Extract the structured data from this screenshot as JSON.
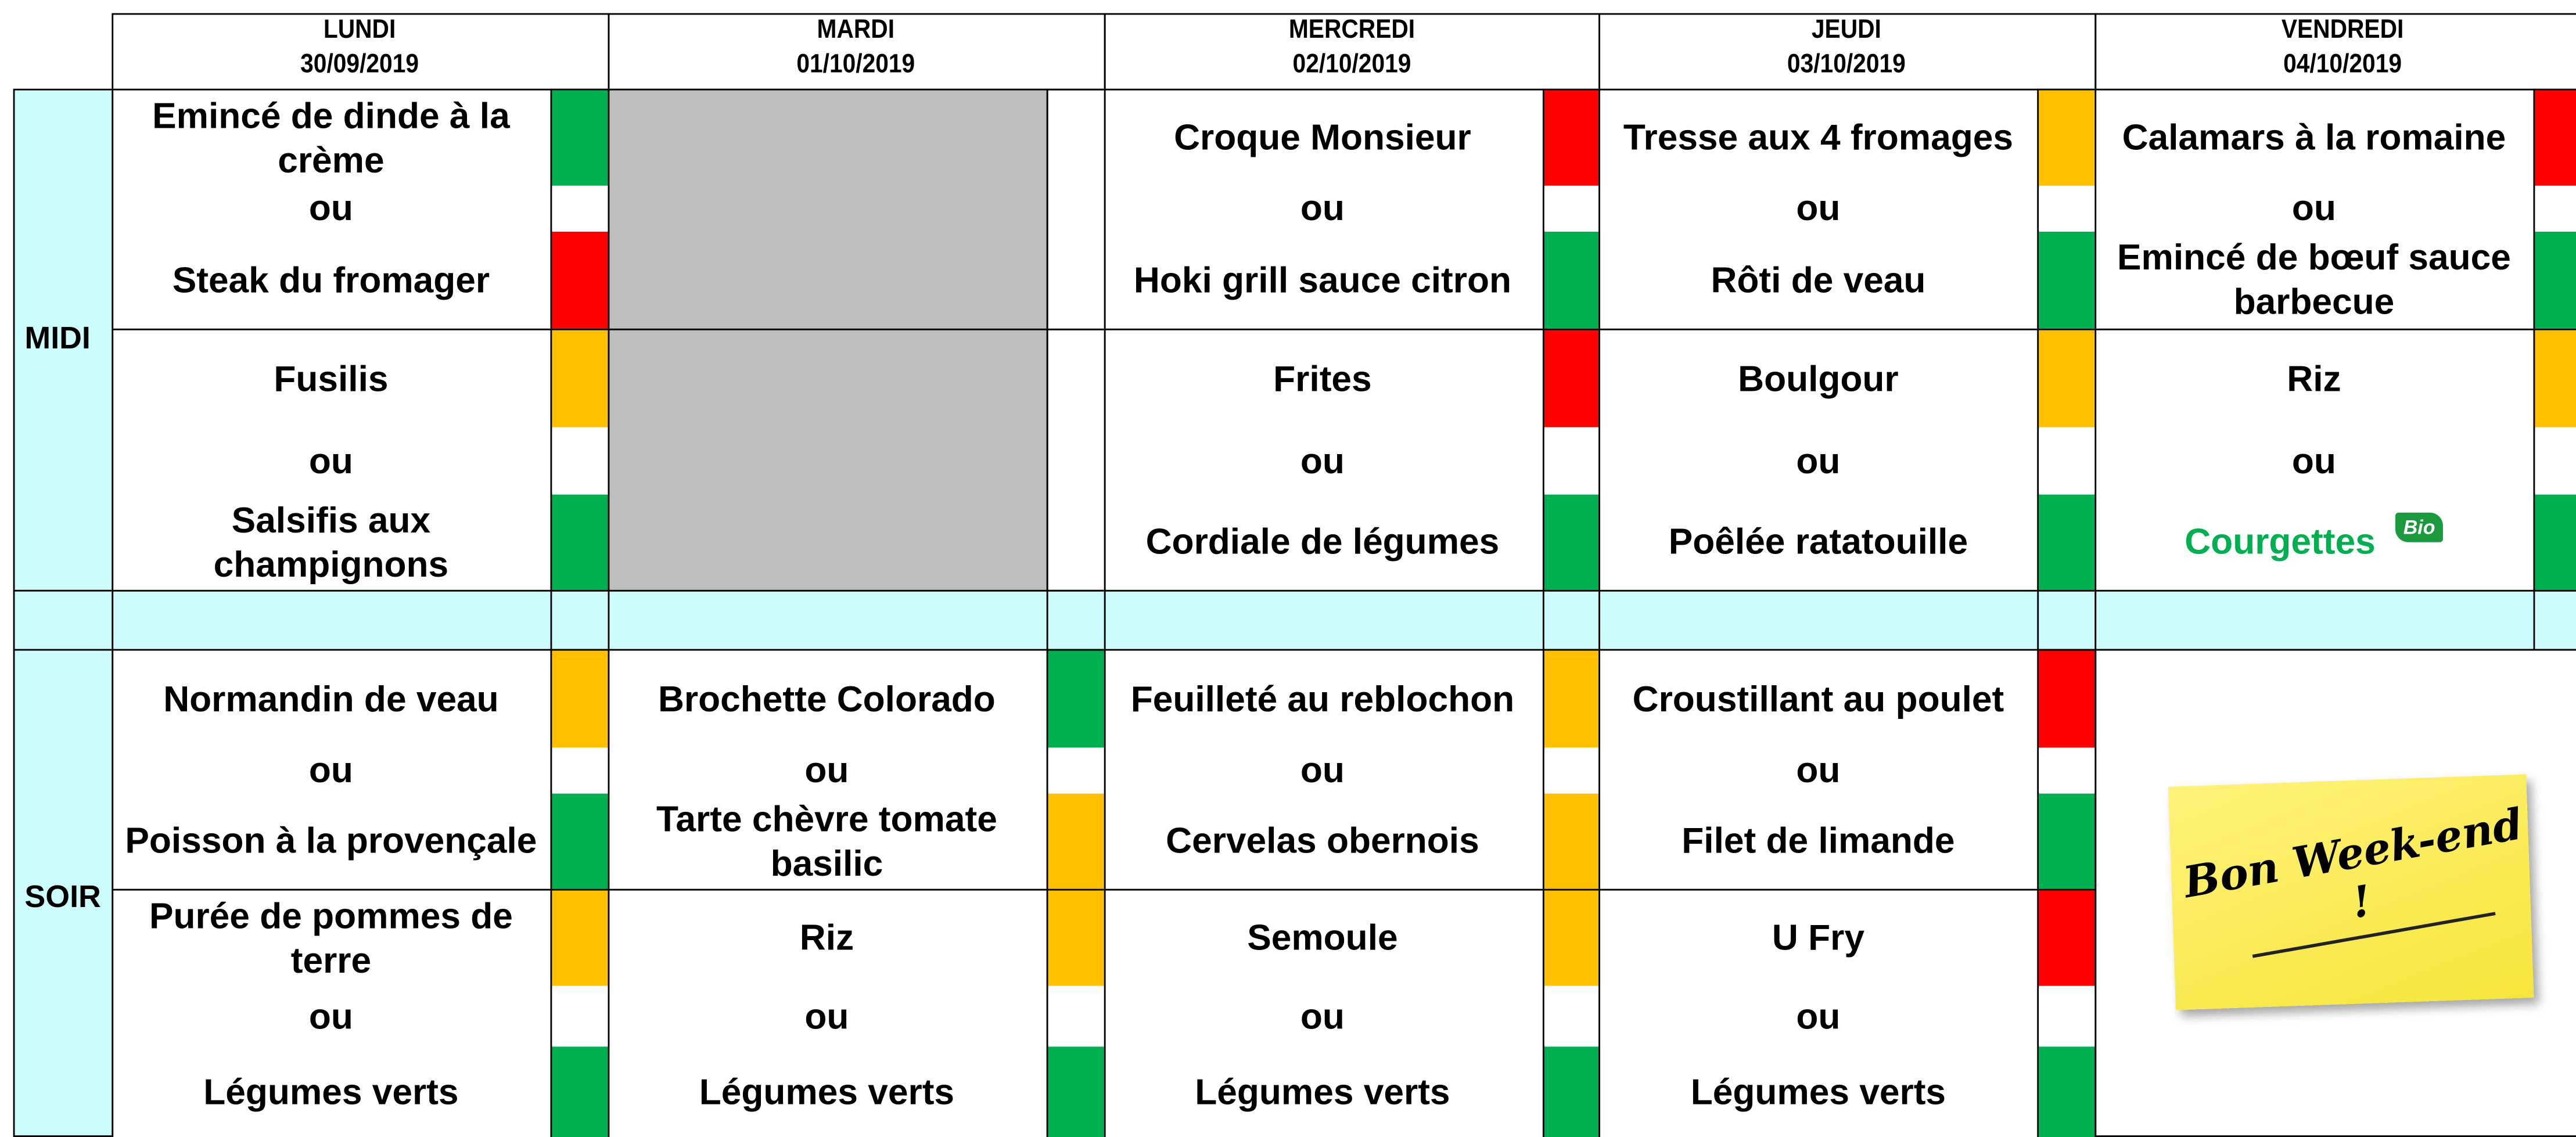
{
  "days": [
    {
      "name": "LUNDI",
      "date": "30/09/2019",
      "midi_main": [
        {
          "text": "Emincé de dinde à la crème",
          "color": "#00b050"
        },
        {
          "text": "ou",
          "color": "#ffffff"
        },
        {
          "text": "Steak du fromager",
          "color": "#ff0000"
        }
      ],
      "midi_side": [
        {
          "text": "Fusilis",
          "color": "#ffc000"
        },
        {
          "text": "ou",
          "color": "#ffffff"
        },
        {
          "text": "Salsifis aux champignons",
          "color": "#00b050"
        }
      ],
      "soir_main": [
        {
          "text": "Normandin de veau",
          "color": "#ffc000"
        },
        {
          "text": "ou",
          "color": "#ffffff"
        },
        {
          "text": "Poisson à la provençale",
          "color": "#00b050"
        }
      ],
      "soir_side": [
        {
          "text": "Purée de pommes de terre",
          "color": "#ffc000"
        },
        {
          "text": "ou",
          "color": "#ffffff"
        },
        {
          "text": "Légumes verts",
          "color": "#00b050"
        }
      ]
    },
    {
      "name": "MARDI",
      "date": "01/10/2019",
      "midi_main": [],
      "midi_side": [],
      "soir_main": [
        {
          "text": "Brochette Colorado",
          "color": "#00b050"
        },
        {
          "text": "ou",
          "color": "#ffffff"
        },
        {
          "text": "Tarte chèvre tomate basilic",
          "color": "#ffc000"
        }
      ],
      "soir_side": [
        {
          "text": "Riz",
          "color": "#ffc000"
        },
        {
          "text": "ou",
          "color": "#ffffff"
        },
        {
          "text": "Légumes verts",
          "color": "#00b050"
        }
      ]
    },
    {
      "name": "MERCREDI",
      "date": "02/10/2019",
      "midi_main": [
        {
          "text": "Croque Monsieur",
          "color": "#ff0000"
        },
        {
          "text": "ou",
          "color": "#ffffff"
        },
        {
          "text": "Hoki grill sauce citron",
          "color": "#00b050"
        }
      ],
      "midi_side": [
        {
          "text": "Frites",
          "color": "#ff0000"
        },
        {
          "text": "ou",
          "color": "#ffffff"
        },
        {
          "text": "Cordiale de légumes",
          "color": "#00b050"
        }
      ],
      "soir_main": [
        {
          "text": "Feuilleté au reblochon",
          "color": "#ffc000"
        },
        {
          "text": "ou",
          "color": "#ffffff"
        },
        {
          "text": "Cervelas obernois",
          "color": "#ffc000"
        }
      ],
      "soir_side": [
        {
          "text": "Semoule",
          "color": "#ffc000"
        },
        {
          "text": "ou",
          "color": "#ffffff"
        },
        {
          "text": "Légumes verts",
          "color": "#00b050"
        }
      ]
    },
    {
      "name": "JEUDI",
      "date": "03/10/2019",
      "midi_main": [
        {
          "text": "Tresse aux 4 fromages",
          "color": "#ffc000"
        },
        {
          "text": "ou",
          "color": "#ffffff"
        },
        {
          "text": "Rôti de veau",
          "color": "#00b050"
        }
      ],
      "midi_side": [
        {
          "text": "Boulgour",
          "color": "#ffc000"
        },
        {
          "text": "ou",
          "color": "#ffffff"
        },
        {
          "text": "Poêlée ratatouille",
          "color": "#00b050"
        }
      ],
      "soir_main": [
        {
          "text": "Croustillant au poulet",
          "color": "#ff0000"
        },
        {
          "text": "ou",
          "color": "#ffffff"
        },
        {
          "text": "Filet de limande",
          "color": "#00b050"
        }
      ],
      "soir_side": [
        {
          "text": "U Fry",
          "color": "#ff0000"
        },
        {
          "text": "ou",
          "color": "#ffffff"
        },
        {
          "text": "Légumes verts",
          "color": "#00b050"
        }
      ]
    },
    {
      "name": "VENDREDI",
      "date": "04/10/2019",
      "midi_main": [
        {
          "text": "Calamars à la romaine",
          "color": "#ff0000"
        },
        {
          "text": "ou",
          "color": "#ffffff"
        },
        {
          "text": "Emincé de bœuf sauce barbecue",
          "color": "#00b050"
        }
      ],
      "midi_side": [
        {
          "text": "Riz",
          "color": "#ffc000"
        },
        {
          "text": "ou",
          "color": "#ffffff"
        },
        {
          "text": "Courgettes",
          "color": "#00b050",
          "text_color": "#00b050",
          "badge": "Bio"
        }
      ],
      "soir_note": "Bon Week-end !"
    }
  ],
  "periods": [
    {
      "label": "MIDI"
    },
    {
      "label": "SOIR"
    }
  ]
}
